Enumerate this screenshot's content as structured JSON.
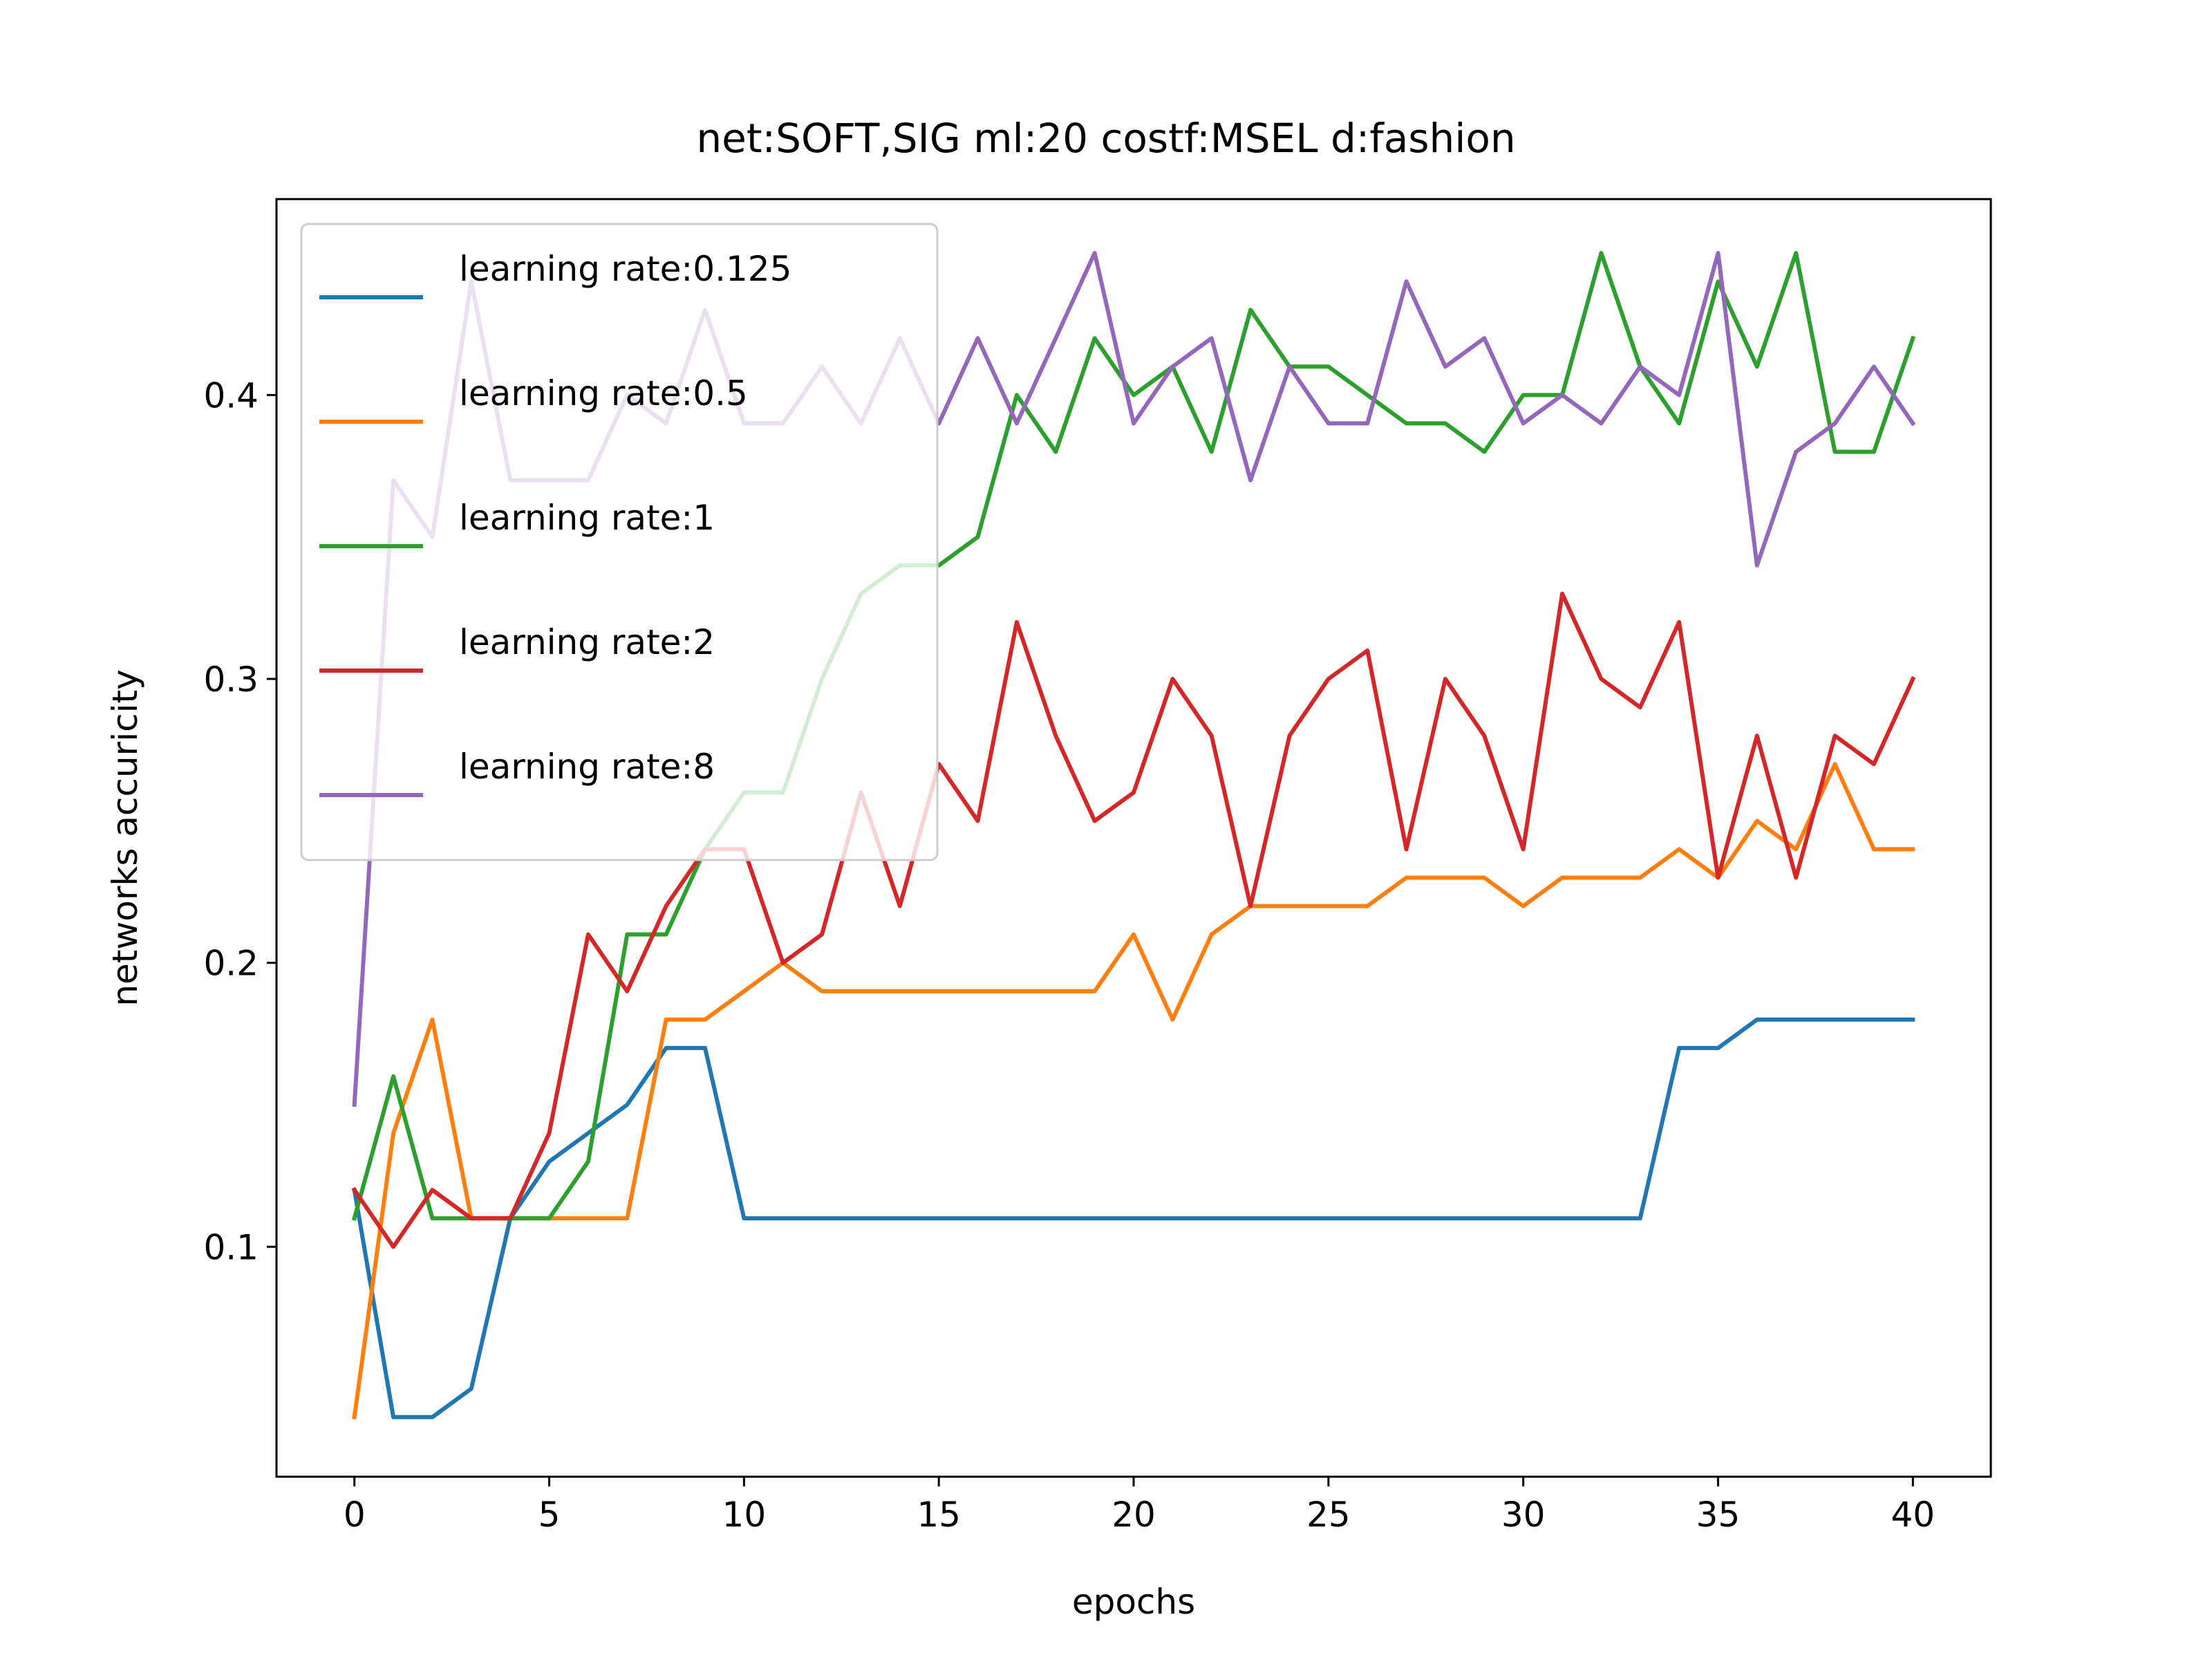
{
  "chart_data": {
    "type": "line",
    "title": "net:SOFT,SIG ml:20 costf:MSEL d:fashion",
    "xlabel": "epochs",
    "ylabel": "networks accuricity",
    "xlim": [
      -2,
      42
    ],
    "ylim": [
      0.019,
      0.469
    ],
    "xticks": [
      0,
      5,
      10,
      15,
      20,
      25,
      30,
      35,
      40
    ],
    "yticks": [
      0.1,
      0.2,
      0.3,
      0.4
    ],
    "xtick_labels": [
      "0",
      "5",
      "10",
      "15",
      "20",
      "25",
      "30",
      "35",
      "40"
    ],
    "ytick_labels": [
      "0.1",
      "0.2",
      "0.3",
      "0.4"
    ],
    "grid": false,
    "legend_position": "upper-left",
    "x": [
      0,
      1,
      2,
      3,
      4,
      5,
      6,
      7,
      8,
      9,
      10,
      11,
      12,
      13,
      14,
      15,
      16,
      17,
      18,
      19,
      20,
      21,
      22,
      23,
      24,
      25,
      26,
      27,
      28,
      29,
      30,
      31,
      32,
      33,
      34,
      35,
      36,
      37,
      38,
      39,
      40
    ],
    "series": [
      {
        "name": "learning rate:0.125",
        "color": "#1f77b4",
        "values": [
          0.12,
          0.04,
          0.04,
          0.05,
          0.11,
          0.13,
          0.14,
          0.15,
          0.17,
          0.17,
          0.11,
          0.11,
          0.11,
          0.11,
          0.11,
          0.11,
          0.11,
          0.11,
          0.11,
          0.11,
          0.11,
          0.11,
          0.11,
          0.11,
          0.11,
          0.11,
          0.11,
          0.11,
          0.11,
          0.11,
          0.11,
          0.11,
          0.11,
          0.11,
          0.17,
          0.17,
          0.18,
          0.18,
          0.18,
          0.18,
          0.18
        ]
      },
      {
        "name": "learning rate:0.5",
        "color": "#ff7f0e",
        "values": [
          0.04,
          0.14,
          0.18,
          0.11,
          0.11,
          0.11,
          0.11,
          0.11,
          0.18,
          0.18,
          0.19,
          0.2,
          0.19,
          0.19,
          0.19,
          0.19,
          0.19,
          0.19,
          0.19,
          0.19,
          0.21,
          0.18,
          0.21,
          0.22,
          0.22,
          0.22,
          0.22,
          0.23,
          0.23,
          0.23,
          0.22,
          0.23,
          0.23,
          0.23,
          0.24,
          0.23,
          0.25,
          0.24,
          0.27,
          0.24,
          0.24
        ]
      },
      {
        "name": "learning rate:1",
        "color": "#2ca02c",
        "values": [
          0.11,
          0.16,
          0.11,
          0.11,
          0.11,
          0.11,
          0.13,
          0.21,
          0.21,
          0.24,
          0.26,
          0.26,
          0.3,
          0.33,
          0.34,
          0.34,
          0.35,
          0.4,
          0.38,
          0.42,
          0.4,
          0.41,
          0.38,
          0.43,
          0.41,
          0.41,
          0.4,
          0.39,
          0.39,
          0.38,
          0.4,
          0.4,
          0.45,
          0.41,
          0.39,
          0.44,
          0.41,
          0.45,
          0.38,
          0.38,
          0.42
        ]
      },
      {
        "name": "learning rate:2",
        "color": "#d62728",
        "values": [
          0.12,
          0.1,
          0.12,
          0.11,
          0.11,
          0.14,
          0.21,
          0.19,
          0.22,
          0.24,
          0.24,
          0.2,
          0.21,
          0.26,
          0.22,
          0.27,
          0.25,
          0.32,
          0.28,
          0.25,
          0.26,
          0.3,
          0.28,
          0.22,
          0.28,
          0.3,
          0.31,
          0.24,
          0.3,
          0.28,
          0.24,
          0.33,
          0.3,
          0.29,
          0.32,
          0.23,
          0.28,
          0.23,
          0.28,
          0.27,
          0.3
        ]
      },
      {
        "name": "learning rate:8",
        "color": "#9467bd",
        "values": [
          0.15,
          0.37,
          0.35,
          0.44,
          0.37,
          0.37,
          0.37,
          0.4,
          0.39,
          0.43,
          0.39,
          0.39,
          0.41,
          0.39,
          0.42,
          0.39,
          0.42,
          0.39,
          0.42,
          0.45,
          0.39,
          0.41,
          0.42,
          0.37,
          0.41,
          0.39,
          0.39,
          0.44,
          0.41,
          0.42,
          0.39,
          0.4,
          0.39,
          0.41,
          0.4,
          0.45,
          0.34,
          0.38,
          0.39,
          0.41,
          0.39
        ]
      }
    ]
  }
}
